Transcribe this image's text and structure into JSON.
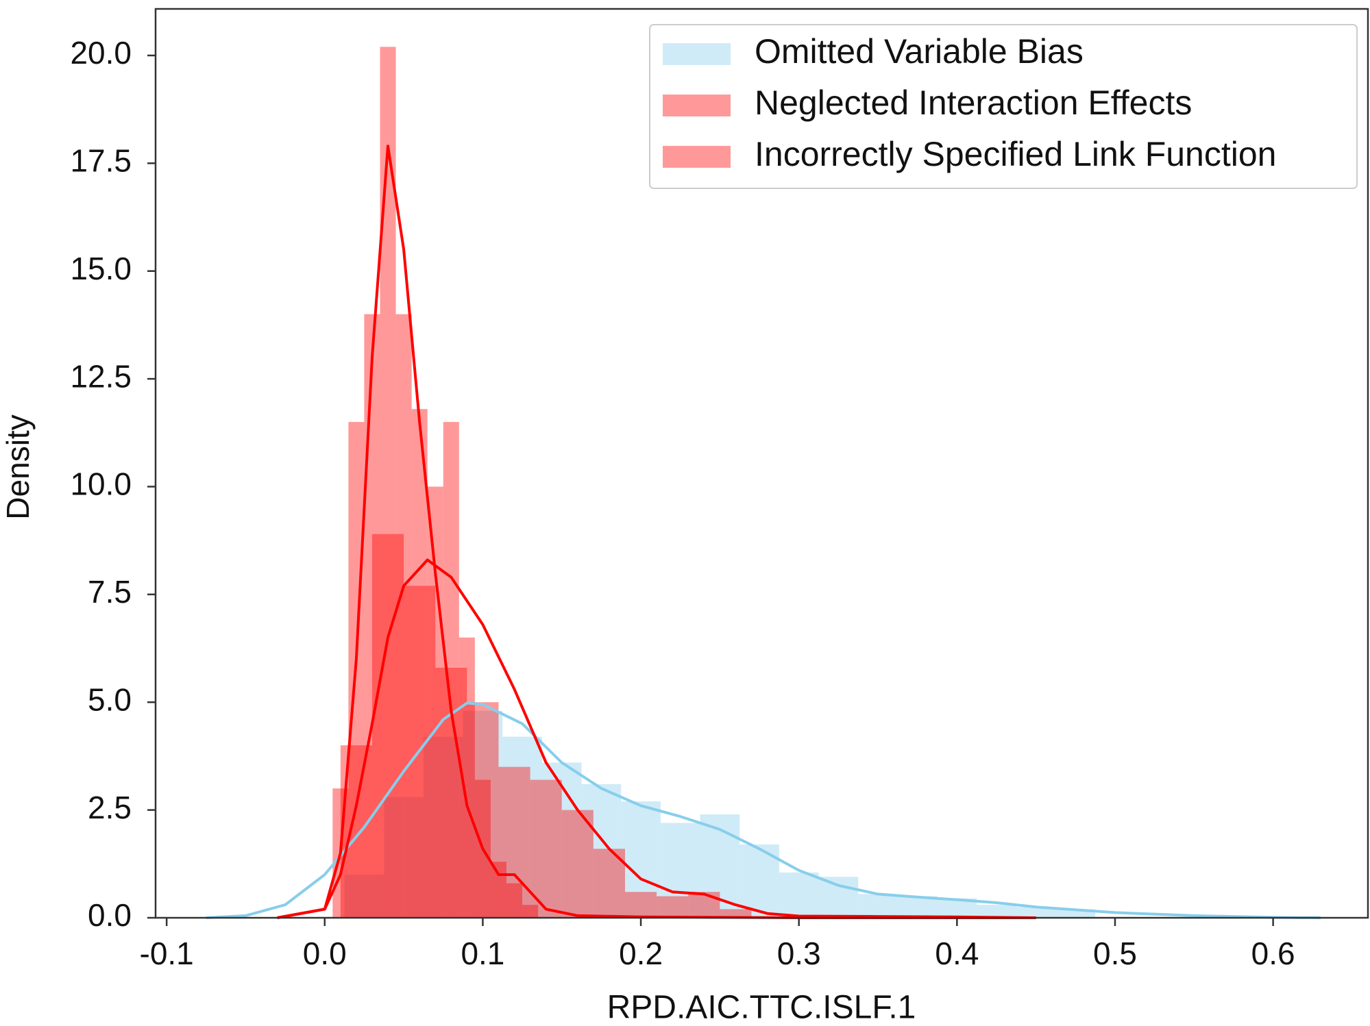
{
  "chart_data": {
    "type": "histogram",
    "xlabel": "RPD.AIC.TTC.ISLF.1",
    "ylabel": "Density",
    "xlim": [
      -0.107,
      0.66
    ],
    "ylim": [
      0,
      21.08
    ],
    "xticks": [
      -0.1,
      {
        "value": 0,
        "label": "0.0"
      },
      0.1,
      0.2,
      0.3,
      0.4,
      0.5,
      0.6
    ],
    "yticks": [
      {
        "value": 0,
        "label": "0.0"
      },
      2.5,
      {
        "value": 5,
        "label": "5.0"
      },
      7.5,
      {
        "value": 10,
        "label": "10.0"
      },
      12.5,
      {
        "value": 15,
        "label": "15.0"
      },
      17.5,
      {
        "value": 20,
        "label": "20.0"
      }
    ],
    "legend": "upper right",
    "series": [
      {
        "name": "Omitted Variable Bias",
        "color": "#87ceeb",
        "bins": [
          0.0125,
          0.0375,
          0.0625,
          0.0875,
          0.1125,
          0.1375,
          0.1625,
          0.1875,
          0.2125,
          0.2375,
          0.2625,
          0.2875,
          0.3125,
          0.3375,
          0.3625,
          0.3875,
          0.4125,
          0.4375,
          0.4625,
          0.4875
        ],
        "values": [
          1.0,
          2.8,
          4.2,
          4.8,
          4.2,
          3.6,
          3.1,
          2.7,
          2.2,
          2.4,
          1.7,
          1.05,
          0.95,
          0.55,
          0.5,
          0.45,
          0.3,
          0.25,
          0.2
        ],
        "kde_x": [
          -0.075,
          -0.05,
          -0.025,
          0,
          0.025,
          0.05,
          0.075,
          0.09,
          0.1,
          0.125,
          0.15,
          0.175,
          0.2,
          0.225,
          0.25,
          0.275,
          0.3,
          0.325,
          0.35,
          0.375,
          0.4,
          0.425,
          0.45,
          0.5,
          0.55,
          0.6,
          0.63
        ],
        "kde_y": [
          0,
          0.05,
          0.3,
          1.0,
          2.1,
          3.4,
          4.6,
          4.98,
          4.95,
          4.5,
          3.6,
          3.0,
          2.6,
          2.35,
          2.05,
          1.6,
          1.1,
          0.75,
          0.55,
          0.48,
          0.42,
          0.35,
          0.25,
          0.12,
          0.05,
          0.01,
          0
        ]
      },
      {
        "name": "Neglected Interaction Effects",
        "color": "#ff0000",
        "bins": [
          0.005,
          0.015,
          0.025,
          0.035,
          0.045,
          0.055,
          0.065,
          0.075,
          0.085,
          0.095,
          0.105,
          0.115,
          0.125,
          0.135
        ],
        "values": [
          3.0,
          11.5,
          14.0,
          20.2,
          14.0,
          11.8,
          10.0,
          11.5,
          6.5,
          3.2,
          1.3,
          0.8,
          0.3
        ],
        "kde_x": [
          -0.03,
          0,
          0.01,
          0.02,
          0.03,
          0.04,
          0.05,
          0.06,
          0.07,
          0.08,
          0.09,
          0.1,
          0.11,
          0.12,
          0.13,
          0.14,
          0.16,
          0.2,
          0.3,
          0.45
        ],
        "kde_y": [
          0,
          0.2,
          1.5,
          6,
          13,
          17.9,
          15.5,
          11.5,
          8,
          4.8,
          2.6,
          1.6,
          1.0,
          1.0,
          0.6,
          0.2,
          0.05,
          0.02,
          0,
          0
        ]
      },
      {
        "name": "Incorrectly Specified Link Function",
        "color": "#ff0000",
        "bins": [
          0.01,
          0.03,
          0.05,
          0.07,
          0.09,
          0.11,
          0.13,
          0.15,
          0.17,
          0.19,
          0.21,
          0.23,
          0.25,
          0.27
        ],
        "values": [
          4.0,
          8.9,
          7.7,
          5.8,
          5.0,
          3.5,
          3.2,
          2.5,
          1.6,
          0.6,
          0.5,
          0.6,
          0.2
        ],
        "kde_x": [
          -0.03,
          0,
          0.01,
          0.02,
          0.03,
          0.04,
          0.05,
          0.065,
          0.08,
          0.1,
          0.12,
          0.14,
          0.16,
          0.18,
          0.2,
          0.22,
          0.24,
          0.26,
          0.28,
          0.3,
          0.35,
          0.4,
          0.45
        ],
        "kde_y": [
          0,
          0.2,
          1.0,
          2.6,
          4.5,
          6.5,
          7.7,
          8.3,
          7.9,
          6.8,
          5.3,
          3.6,
          2.5,
          1.6,
          0.9,
          0.6,
          0.55,
          0.3,
          0.1,
          0.04,
          0.03,
          0.02,
          0
        ]
      }
    ]
  }
}
